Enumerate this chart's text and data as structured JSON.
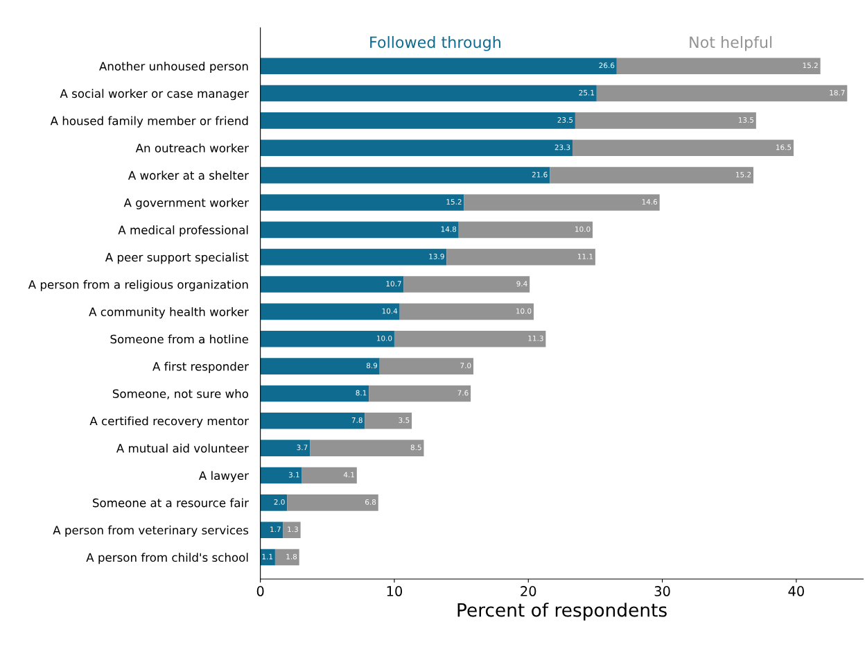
{
  "chart_data": {
    "type": "bar",
    "orientation": "horizontal",
    "stacked": true,
    "xlabel": "Percent of respondents",
    "categories": [
      "Another unhoused person",
      "A social worker or case manager",
      "A housed family member or friend",
      "An outreach worker",
      "A worker at a shelter",
      "A government worker",
      "A medical professional",
      "A peer support specialist",
      "A person from a religious organization",
      "A community health worker",
      "Someone from a hotline",
      "A first responder",
      "Someone, not sure who",
      "A certified recovery mentor",
      "A mutual aid volunteer",
      "A lawyer",
      "Someone at a resource fair",
      "A person from veterinary services",
      "A person from child's school"
    ],
    "series": [
      {
        "name": "Followed through",
        "color": "#0f6b8f",
        "values": [
          26.6,
          25.1,
          23.5,
          23.3,
          21.6,
          15.2,
          14.8,
          13.9,
          10.7,
          10.4,
          10.0,
          8.9,
          8.1,
          7.8,
          3.7,
          3.1,
          2.0,
          1.7,
          1.1
        ],
        "value_labels": [
          "26.6",
          "25.1",
          "23.5",
          "23.3",
          "21.6",
          "15.2",
          "14.8",
          "13.9",
          "10.7",
          "10.4",
          "10.0",
          "8.9",
          "8.1",
          "7.8",
          "3.7",
          "3.1",
          "2.0",
          "1.7",
          "1.1"
        ]
      },
      {
        "name": "Not helpful",
        "color": "#939393",
        "values": [
          15.2,
          18.7,
          13.5,
          16.5,
          15.2,
          14.6,
          10.0,
          11.1,
          9.4,
          10.0,
          11.3,
          7.0,
          7.6,
          3.5,
          8.5,
          4.1,
          6.8,
          1.3,
          1.8
        ],
        "value_labels": [
          "15.2",
          "18.7",
          "13.5",
          "16.5",
          "15.2",
          "14.6",
          "10.0",
          "11.1",
          "9.4",
          "10.0",
          "11.3",
          "7.0",
          "7.6",
          "3.5",
          "8.5",
          "4.1",
          "6.8",
          "1.3",
          "1.8"
        ]
      }
    ],
    "xlim": [
      0,
      45
    ],
    "xticks": [
      0,
      10,
      20,
      30,
      40
    ],
    "legend": "top",
    "grid": false
  }
}
